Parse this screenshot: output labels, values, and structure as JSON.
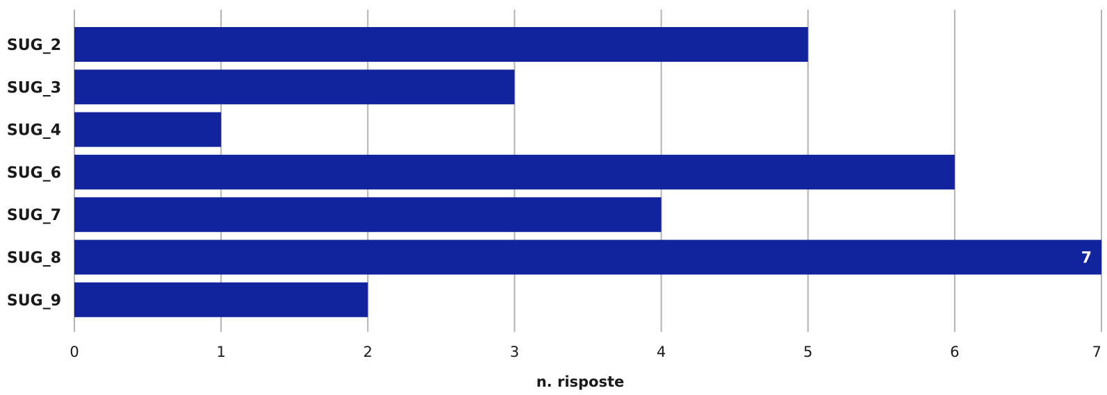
{
  "chart_data": {
    "type": "bar",
    "orientation": "horizontal",
    "categories": [
      "SUG_2",
      "SUG_3",
      "SUG_4",
      "SUG_6",
      "SUG_7",
      "SUG_8",
      "SUG_9"
    ],
    "values": [
      5,
      3,
      1,
      6,
      4,
      7,
      2
    ],
    "title": "",
    "xlabel": "n. risposte",
    "ylabel": "",
    "xlim": [
      0,
      7
    ],
    "x_ticks": [
      "0",
      "1",
      "2",
      "3",
      "4",
      "5",
      "6",
      "7"
    ],
    "grid": "vertical",
    "bar_color": "#12239E",
    "data_labels": [
      {
        "category": "SUG_8",
        "text": "7"
      }
    ]
  }
}
